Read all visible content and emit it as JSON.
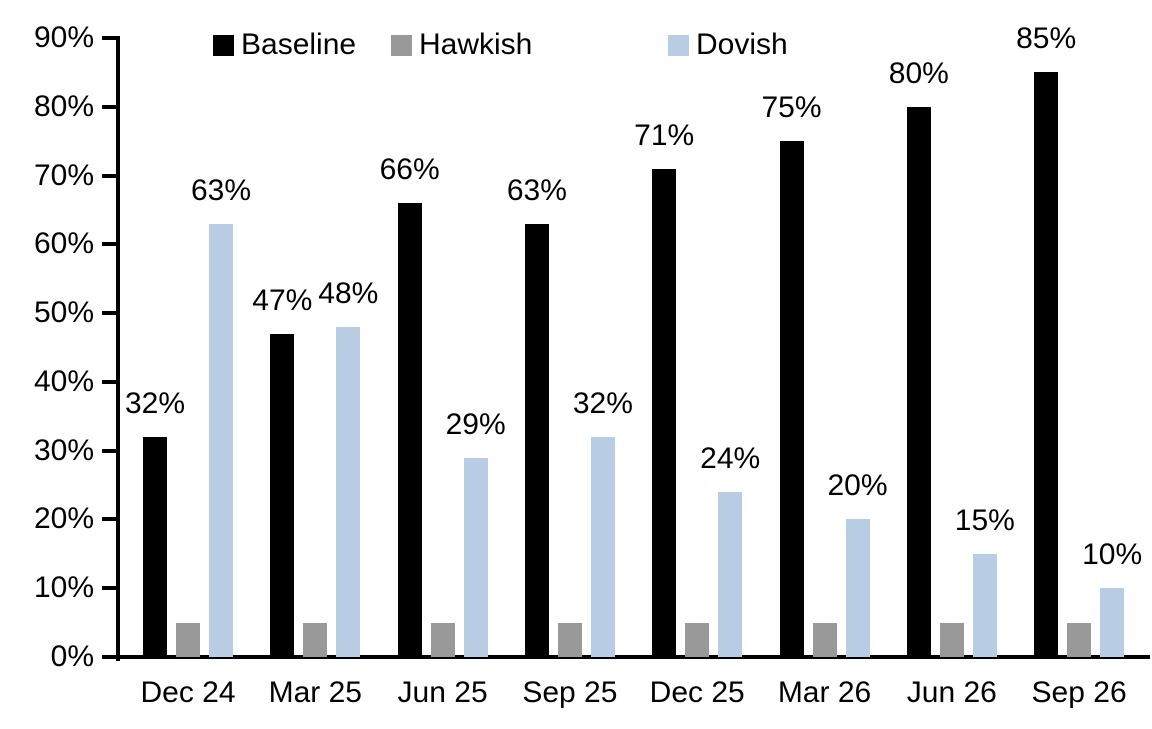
{
  "chart_data": {
    "type": "bar",
    "title": "",
    "xlabel": "",
    "ylabel": "",
    "categories": [
      "Dec 24",
      "Mar 25",
      "Jun 25",
      "Sep 25",
      "Dec 25",
      "Mar 26",
      "Jun 26",
      "Sep 26"
    ],
    "series": [
      {
        "name": "Baseline",
        "color": "#000000",
        "values": [
          32,
          47,
          66,
          63,
          71,
          75,
          80,
          85
        ],
        "data_labels": [
          "32%",
          "47%",
          "66%",
          "63%",
          "71%",
          "75%",
          "80%",
          "85%"
        ]
      },
      {
        "name": "Hawkish",
        "color": "#999999",
        "values": [
          5,
          5,
          5,
          5,
          5,
          5,
          5,
          5
        ],
        "data_labels": null
      },
      {
        "name": "Dovish",
        "color": "#B8CCE4",
        "values": [
          63,
          48,
          29,
          32,
          24,
          20,
          15,
          10
        ],
        "data_labels": [
          "63%",
          "48%",
          "29%",
          "32%",
          "24%",
          "20%",
          "15%",
          "10%"
        ]
      }
    ],
    "ylim": [
      0,
      90
    ],
    "ytick_step": 10,
    "ytick_labels": [
      "0%",
      "10%",
      "20%",
      "30%",
      "40%",
      "50%",
      "60%",
      "70%",
      "80%",
      "90%"
    ],
    "grid": false,
    "legend_position": "top",
    "axis_color": "#000000",
    "text_color": "#000000"
  }
}
